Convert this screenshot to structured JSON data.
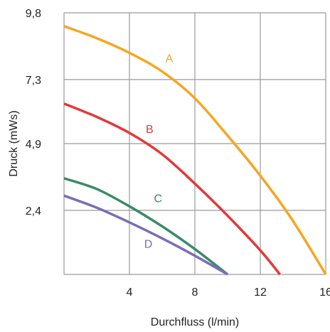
{
  "chart_data": {
    "type": "line",
    "xlabel": "Durchfluss (l/min)",
    "ylabel": "Druck (mWs)",
    "xlim": [
      0,
      16
    ],
    "ylim": [
      0,
      9.8
    ],
    "x_ticks": [
      "4",
      "8",
      "12",
      "16"
    ],
    "y_ticks": [
      "2,4",
      "4,9",
      "7,3",
      "9,8"
    ],
    "x_tick_values": [
      4,
      8,
      12,
      16
    ],
    "y_tick_values": [
      2.4,
      4.9,
      7.3,
      9.8
    ],
    "grid": true,
    "legend": "none",
    "series": [
      {
        "name": "A",
        "color": "#f5a623",
        "points": [
          [
            0,
            9.3
          ],
          [
            2,
            8.85
          ],
          [
            4,
            8.3
          ],
          [
            6,
            7.6
          ],
          [
            8,
            6.6
          ],
          [
            10,
            5.2
          ],
          [
            12,
            3.7
          ],
          [
            14,
            2.0
          ],
          [
            16,
            0.0
          ]
        ]
      },
      {
        "name": "B",
        "color": "#e03a3a",
        "points": [
          [
            0,
            6.4
          ],
          [
            2,
            5.9
          ],
          [
            4,
            5.3
          ],
          [
            6,
            4.5
          ],
          [
            8,
            3.4
          ],
          [
            10,
            2.2
          ],
          [
            12,
            0.9
          ],
          [
            13.2,
            0.0
          ]
        ]
      },
      {
        "name": "C",
        "color": "#3a8a6a",
        "points": [
          [
            0,
            3.6
          ],
          [
            2,
            3.2
          ],
          [
            4,
            2.55
          ],
          [
            6,
            1.8
          ],
          [
            8,
            0.95
          ],
          [
            10,
            0.0
          ]
        ]
      },
      {
        "name": "D",
        "color": "#7b6eb4",
        "points": [
          [
            0,
            2.95
          ],
          [
            2,
            2.5
          ],
          [
            4,
            1.95
          ],
          [
            6,
            1.35
          ],
          [
            8,
            0.7
          ],
          [
            10,
            0.0
          ]
        ]
      }
    ]
  }
}
